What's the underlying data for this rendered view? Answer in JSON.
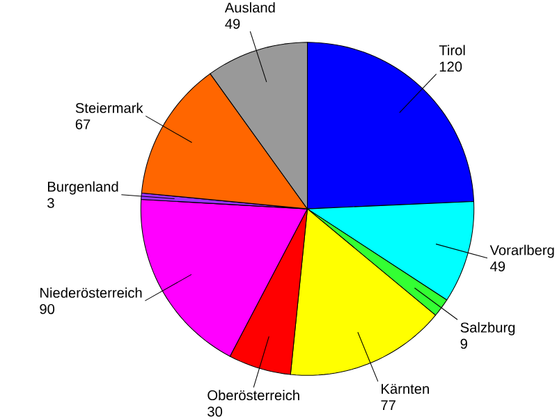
{
  "chart_data": {
    "type": "pie",
    "categories": [
      "Tirol",
      "Vorarlberg",
      "Salzburg",
      "Kärnten",
      "Oberösterreich",
      "Niederösterreich",
      "Burgenland",
      "Steiermark",
      "Ausland"
    ],
    "values": [
      120,
      49,
      9,
      77,
      30,
      90,
      3,
      67,
      49
    ],
    "colors": [
      "#0000ff",
      "#00ffff",
      "#33ff33",
      "#ffff00",
      "#ff0000",
      "#ff00ff",
      "#9933ff",
      "#ff6600",
      "#999999"
    ],
    "data_labels": true
  }
}
